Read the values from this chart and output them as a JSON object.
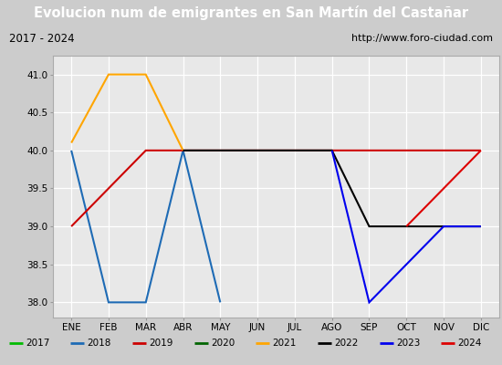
{
  "title": "Evolucion num de emigrantes en San Martín del Castañar",
  "title_bg": "#4d8bc9",
  "subtitle_left": "2017 - 2024",
  "subtitle_right": "http://www.foro-ciudad.com",
  "months": [
    "ENE",
    "FEB",
    "MAR",
    "ABR",
    "MAY",
    "JUN",
    "JUL",
    "AGO",
    "SEP",
    "OCT",
    "NOV",
    "DIC"
  ],
  "ylim": [
    37.8,
    41.25
  ],
  "yticks": [
    38.0,
    38.5,
    39.0,
    39.5,
    40.0,
    40.5,
    41.0
  ],
  "series": {
    "2017": {
      "color": "#00bb00",
      "x": [],
      "y": []
    },
    "2018": {
      "color": "#1e6bb5",
      "x": [
        0,
        1,
        2,
        3,
        4
      ],
      "y": [
        40.0,
        38.0,
        38.0,
        40.0,
        38.0
      ]
    },
    "2019": {
      "color": "#cc0000",
      "x": [
        0,
        2,
        11
      ],
      "y": [
        39.0,
        40.0,
        40.0
      ]
    },
    "2020": {
      "color": "#006400",
      "x": [],
      "y": []
    },
    "2021": {
      "color": "#ffa500",
      "x": [
        0,
        1,
        2,
        3
      ],
      "y": [
        40.1,
        41.0,
        41.0,
        40.0
      ]
    },
    "2022": {
      "color": "#000000",
      "x": [
        3,
        7,
        8,
        11
      ],
      "y": [
        40.0,
        40.0,
        39.0,
        39.0
      ]
    },
    "2023": {
      "color": "#0000ee",
      "x": [
        7,
        8,
        10,
        11
      ],
      "y": [
        40.0,
        38.0,
        39.0,
        39.0
      ]
    },
    "2024": {
      "color": "#dd0000",
      "x": [
        9,
        11
      ],
      "y": [
        39.0,
        40.0
      ]
    }
  },
  "bg_plot": "#e8e8e8",
  "bg_fig": "#cccccc",
  "grid_color": "#ffffff",
  "legend_order": [
    "2017",
    "2018",
    "2019",
    "2020",
    "2021",
    "2022",
    "2023",
    "2024"
  ],
  "fig_width": 5.5,
  "fig_height": 4.0,
  "dpi": 100
}
